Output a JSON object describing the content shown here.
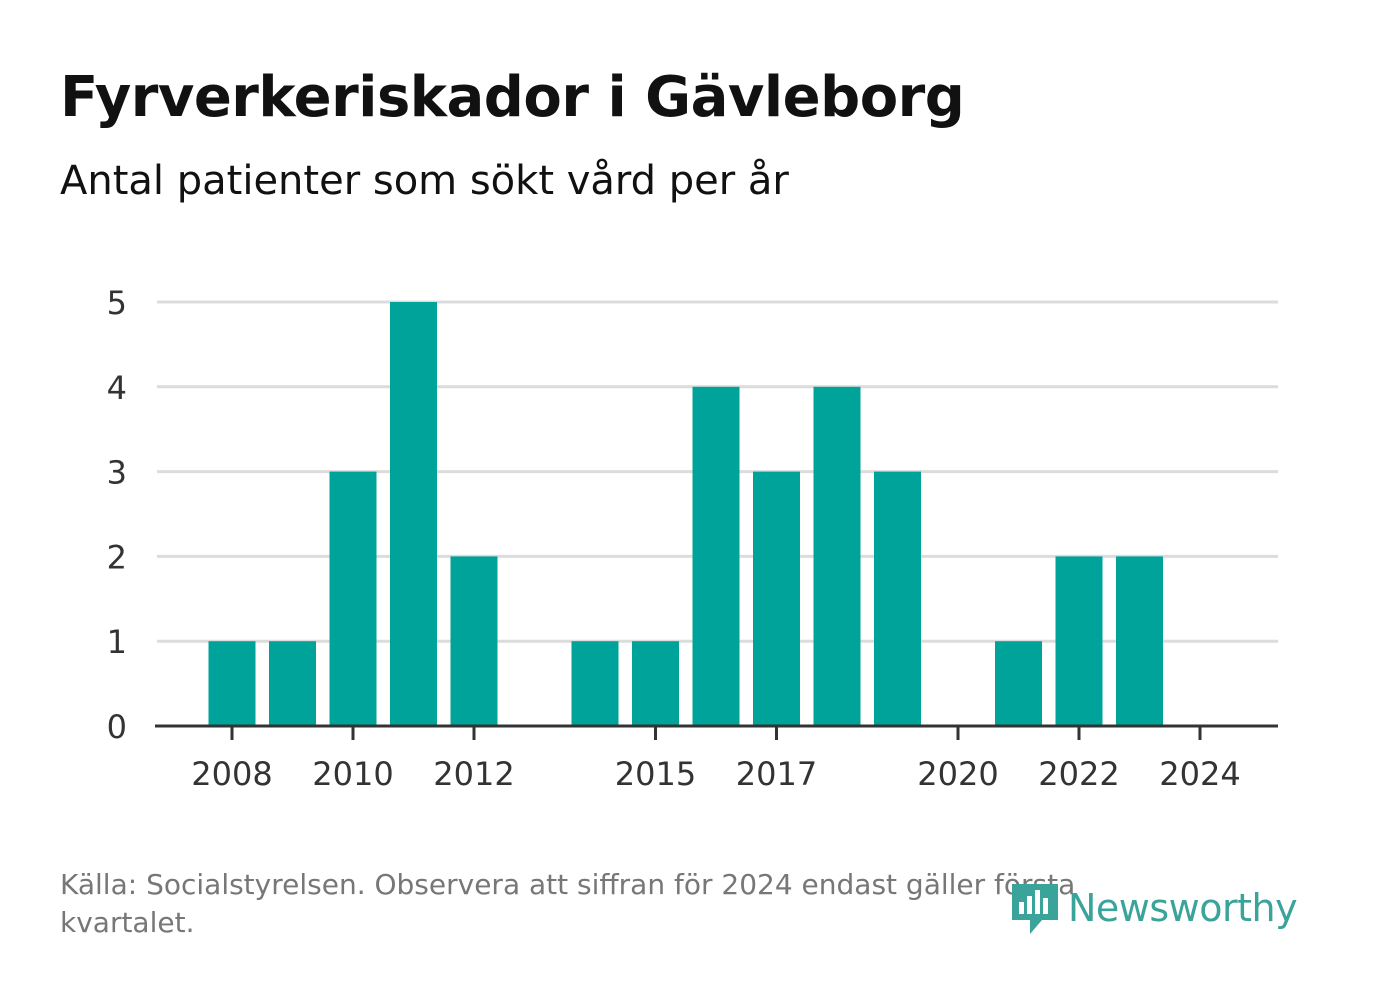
{
  "chart_data": {
    "type": "bar",
    "title": "Fyrverkeriskador i Gävleborg",
    "subtitle": "Antal patienter som sökt vård per år",
    "x": [
      2008,
      2009,
      2010,
      2011,
      2012,
      2013,
      2014,
      2015,
      2016,
      2017,
      2018,
      2019,
      2020,
      2021,
      2022,
      2023,
      2024
    ],
    "values": [
      1,
      1,
      3,
      5,
      2,
      0,
      1,
      1,
      4,
      3,
      4,
      3,
      0,
      1,
      2,
      2,
      0
    ],
    "x_ticks": [
      "2008",
      "2010",
      "2012",
      "2015",
      "2017",
      "2020",
      "2022",
      "2024"
    ],
    "y_ticks": [
      "0",
      "1",
      "2",
      "3",
      "4",
      "5"
    ],
    "ylim": [
      0,
      5
    ],
    "grid": "horizontal",
    "bar_color": "#00a39a",
    "grid_color": "#dcdcdc",
    "axis_color": "#333333"
  },
  "footer": {
    "source": "Källa: Socialstyrelsen. Observera att siffran för 2024 endast gäller första kvartalet.",
    "brand": "Newsworthy",
    "brand_icon": "newsworthy-logo-icon",
    "brand_color": "#3aa39a"
  }
}
